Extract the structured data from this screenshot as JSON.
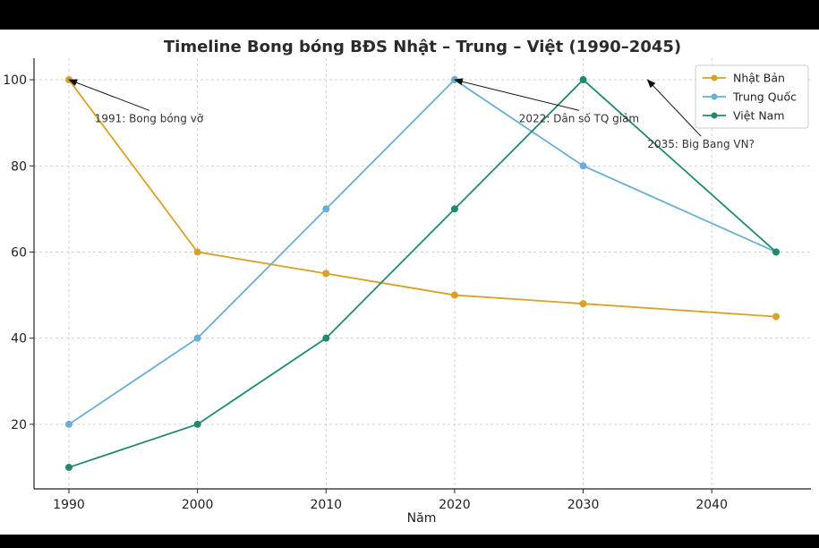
{
  "chart_data": {
    "type": "line",
    "title": "Timeline Bong bóng BĐS Nhật – Trung – Việt (1990–2045)",
    "xlabel": "Năm",
    "ylabel": "",
    "xlim": [
      1990,
      2045
    ],
    "ylim": [
      5,
      105
    ],
    "xticks": [
      1990,
      2000,
      2010,
      2020,
      2030,
      2040
    ],
    "yticks": [
      20,
      40,
      60,
      80,
      100
    ],
    "grid": true,
    "legend_position": "top-right",
    "x": [
      1990,
      2000,
      2010,
      2020,
      2030,
      2045
    ],
    "series": [
      {
        "name": "Nhật Bản",
        "color": "#d9a127",
        "values": [
          100,
          60,
          55,
          50,
          48,
          45
        ]
      },
      {
        "name": "Trung Quốc",
        "color": "#6aaed6",
        "values": [
          20,
          40,
          70,
          100,
          80,
          60
        ]
      },
      {
        "name": "Việt Nam",
        "color": "#1f8a70",
        "values": [
          10,
          20,
          40,
          70,
          100,
          60
        ]
      }
    ],
    "annotations": [
      {
        "text": "1991: Bong bóng vỡ",
        "arrow_to": [
          1990,
          100
        ],
        "text_at": [
          1992,
          91
        ]
      },
      {
        "text": "2022: Dân số TQ giảm",
        "arrow_to": [
          2020,
          100
        ],
        "text_at": [
          2025,
          91
        ]
      },
      {
        "text": "2035: Big Bang VN?",
        "arrow_to": [
          2035,
          100
        ],
        "text_at": [
          2035,
          85
        ]
      }
    ]
  }
}
